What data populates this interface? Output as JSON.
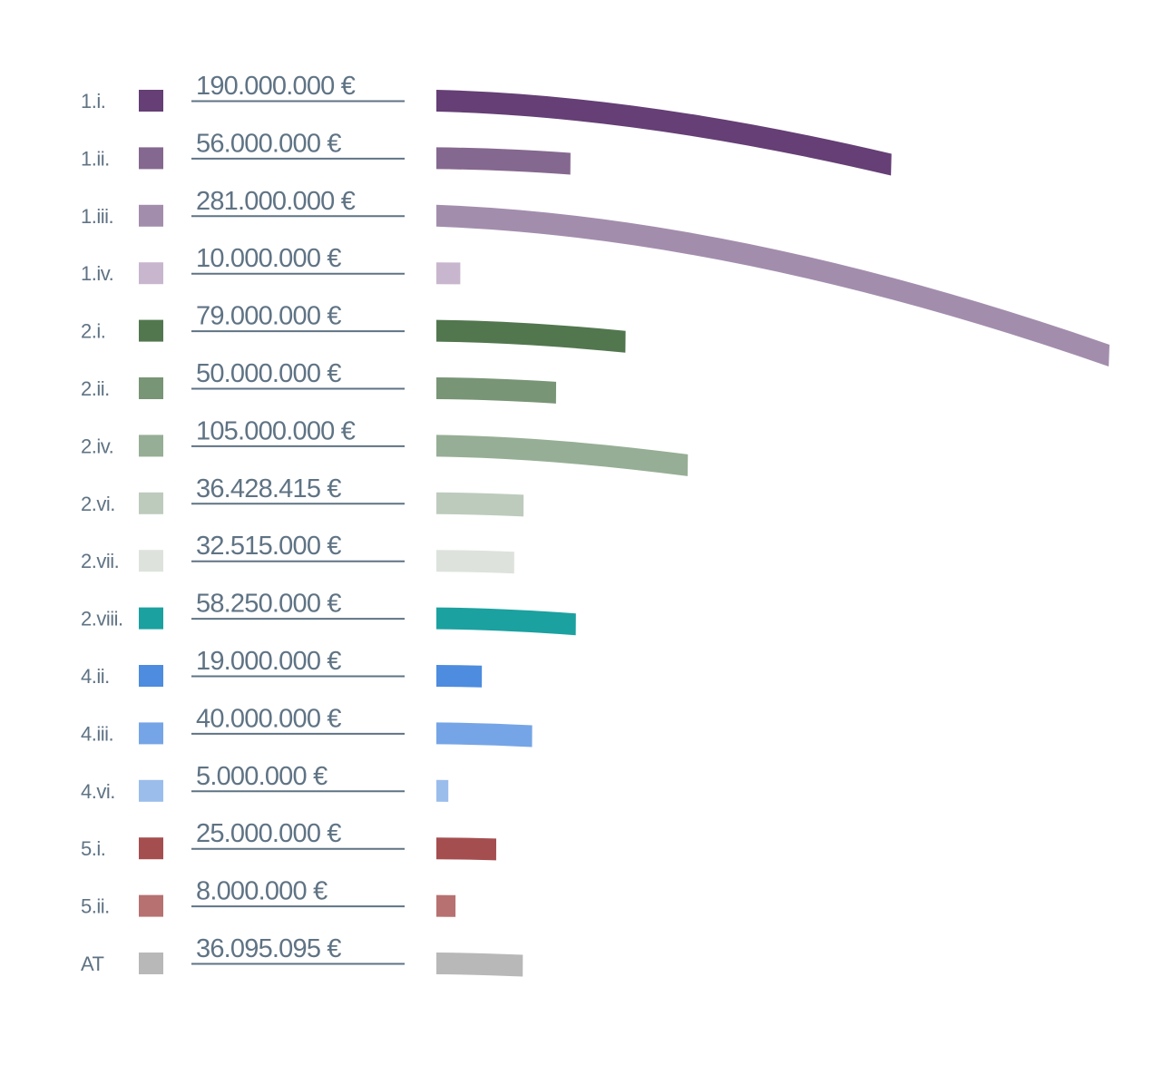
{
  "chart_data": {
    "type": "bar",
    "categories": [
      "1.i.",
      "1.ii.",
      "1.iii.",
      "1.iv.",
      "2.i.",
      "2.ii.",
      "2.iv.",
      "2.vi.",
      "2.vii.",
      "2.viii.",
      "4.ii.",
      "4.iii.",
      "4.vi.",
      "5.i.",
      "5.ii.",
      "AT"
    ],
    "value_labels": [
      "190.000.000 €",
      "56.000.000 €",
      "281.000.000 €",
      "10.000.000 €",
      "79.000.000 €",
      "50.000.000 €",
      "105.000.000 €",
      "36.428.415 €",
      "32.515.000 €",
      "58.250.000 €",
      "19.000.000 €",
      "40.000.000 €",
      "5.000.000 €",
      "25.000.000 €",
      "8.000.000 €",
      "36.095.095 €"
    ],
    "values": [
      190000000,
      56000000,
      281000000,
      10000000,
      79000000,
      50000000,
      105000000,
      36428415,
      32515000,
      58250000,
      19000000,
      40000000,
      5000000,
      25000000,
      8000000,
      36095095
    ],
    "colors": [
      "#653f75",
      "#85688f",
      "#a38dad",
      "#c8b6ce",
      "#52774f",
      "#789576",
      "#96ae95",
      "#bdcbbc",
      "#dde3dc",
      "#1ba1a0",
      "#4d8cde",
      "#75a5e6",
      "#9abdec",
      "#a54e50",
      "#b77170",
      "#b8b8b8"
    ],
    "bar_style": "curved arc",
    "title": "",
    "xlabel": "",
    "ylabel": ""
  }
}
